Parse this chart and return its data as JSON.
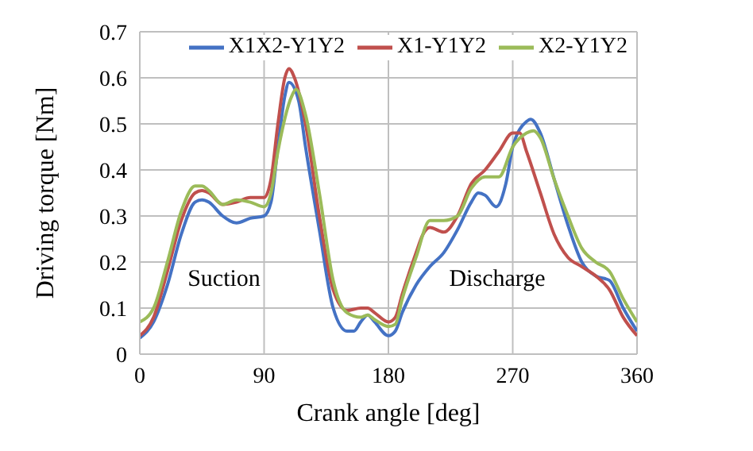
{
  "chart_data": {
    "type": "line",
    "xlabel": "Crank angle [deg]",
    "ylabel": "Driving torque [Nm]",
    "xlim": [
      0,
      360
    ],
    "xticks": [
      0,
      90,
      180,
      270,
      360
    ],
    "ylim": [
      0,
      0.7
    ],
    "yticks": [
      0,
      0.1,
      0.2,
      0.3,
      0.4,
      0.5,
      0.6,
      0.7
    ],
    "grid": true,
    "legend": "top right",
    "marker": "none",
    "line_style": "solid",
    "annotations": [
      "Suction",
      "Discharge"
    ],
    "series": [
      {
        "name": "X1X2-Y1Y2",
        "color": "#4472c4",
        "x": [
          0,
          10,
          20,
          30,
          40,
          45,
          50,
          60,
          70,
          80,
          90,
          95,
          100,
          105,
          108,
          115,
          120,
          130,
          140,
          150,
          155,
          160,
          165,
          170,
          180,
          185,
          190,
          200,
          210,
          220,
          230,
          240,
          245,
          250,
          258,
          265,
          270,
          280,
          283,
          290,
          300,
          310,
          320,
          330,
          340,
          350,
          360
        ],
        "values": [
          0.035,
          0.07,
          0.15,
          0.26,
          0.33,
          0.335,
          0.33,
          0.3,
          0.285,
          0.295,
          0.3,
          0.33,
          0.45,
          0.56,
          0.59,
          0.55,
          0.45,
          0.27,
          0.1,
          0.05,
          0.05,
          0.07,
          0.085,
          0.07,
          0.04,
          0.05,
          0.09,
          0.15,
          0.19,
          0.22,
          0.27,
          0.33,
          0.35,
          0.345,
          0.32,
          0.37,
          0.45,
          0.505,
          0.51,
          0.48,
          0.38,
          0.28,
          0.2,
          0.17,
          0.16,
          0.1,
          0.05
        ]
      },
      {
        "name": "X1-Y1Y2",
        "color": "#c0504d",
        "x": [
          0,
          10,
          20,
          30,
          40,
          45,
          50,
          60,
          70,
          80,
          90,
          95,
          100,
          105,
          108,
          112,
          120,
          130,
          140,
          150,
          160,
          165,
          170,
          180,
          185,
          190,
          200,
          205,
          210,
          220,
          230,
          240,
          250,
          260,
          270,
          275,
          280,
          290,
          300,
          310,
          320,
          330,
          340,
          350,
          360
        ],
        "values": [
          0.04,
          0.08,
          0.18,
          0.29,
          0.35,
          0.355,
          0.35,
          0.325,
          0.33,
          0.34,
          0.34,
          0.38,
          0.5,
          0.6,
          0.62,
          0.6,
          0.5,
          0.3,
          0.14,
          0.095,
          0.1,
          0.1,
          0.09,
          0.07,
          0.08,
          0.13,
          0.22,
          0.26,
          0.275,
          0.265,
          0.3,
          0.37,
          0.4,
          0.44,
          0.48,
          0.48,
          0.44,
          0.35,
          0.26,
          0.21,
          0.19,
          0.17,
          0.14,
          0.08,
          0.04
        ]
      },
      {
        "name": "X2-Y1Y2",
        "color": "#9bbb59",
        "x": [
          0,
          10,
          20,
          30,
          40,
          45,
          50,
          60,
          70,
          80,
          90,
          95,
          100,
          110,
          113,
          120,
          130,
          140,
          150,
          160,
          165,
          170,
          180,
          185,
          190,
          200,
          210,
          220,
          230,
          240,
          250,
          260,
          270,
          280,
          285,
          290,
          300,
          310,
          320,
          330,
          340,
          350,
          360
        ],
        "values": [
          0.07,
          0.1,
          0.2,
          0.31,
          0.365,
          0.365,
          0.355,
          0.325,
          0.335,
          0.33,
          0.32,
          0.35,
          0.44,
          0.56,
          0.575,
          0.52,
          0.35,
          0.16,
          0.09,
          0.08,
          0.085,
          0.075,
          0.06,
          0.065,
          0.12,
          0.21,
          0.29,
          0.29,
          0.3,
          0.36,
          0.385,
          0.385,
          0.45,
          0.48,
          0.485,
          0.47,
          0.38,
          0.3,
          0.23,
          0.2,
          0.18,
          0.12,
          0.07
        ]
      }
    ]
  }
}
